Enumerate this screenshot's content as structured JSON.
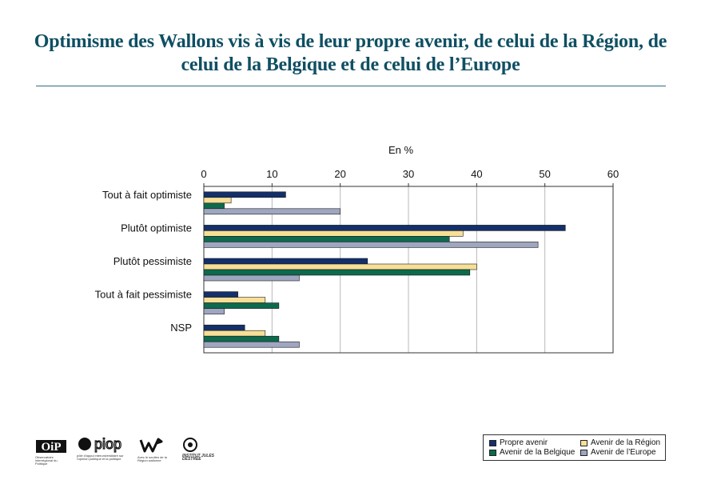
{
  "header": {
    "title_line1": "Optimisme des Wallons vis à vis de leur propre avenir, de celui de la Région, de",
    "title_line2": "celui de la Belgique et de celui de l’Europe"
  },
  "chart_data": {
    "type": "bar",
    "orientation": "horizontal",
    "unit_label": "En %",
    "xlim": [
      0,
      60
    ],
    "xticks": [
      0,
      10,
      20,
      30,
      40,
      50,
      60
    ],
    "grid": "vertical major gridlines",
    "categories": [
      "Tout à fait optimiste",
      "Plutôt optimiste",
      "Plutôt pessimiste",
      "Tout à fait pessimiste",
      "NSP"
    ],
    "series": [
      {
        "name": "Propre avenir",
        "color": "#13306a",
        "values": [
          12,
          53,
          24,
          5,
          6
        ]
      },
      {
        "name": "Avenir de la Région",
        "color": "#f6df96",
        "values": [
          4,
          38,
          40,
          9,
          9
        ]
      },
      {
        "name": "Avenir de la Belgique",
        "color": "#0d6a4d",
        "values": [
          3,
          36,
          39,
          11,
          11
        ]
      },
      {
        "name": "Avenir de l’Europe",
        "color": "#9fa6c0",
        "values": [
          20,
          49,
          14,
          3,
          14
        ]
      }
    ],
    "legend_placement": "bottom-right"
  },
  "logos": {
    "oip_text": "OiP",
    "oip_caption": "Observatoire interrégional du Politique",
    "piop_text": "piop",
    "piop_caption": "pôle d'appui interuniversitaire sur l'opinion publique et la politique",
    "region_caption": "Avec le soutien de la Région wallonne",
    "ijd_text": "INSTITUT JULES DESTRÉE"
  }
}
